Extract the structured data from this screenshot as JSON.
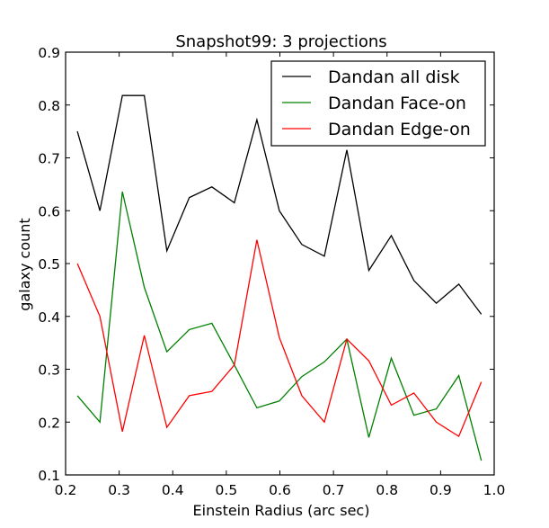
{
  "chart_data": {
    "type": "line",
    "title": "Snapshot99: 3 projections",
    "xlabel": "Einstein Radius (arc sec)",
    "ylabel": "galaxy count",
    "xlim": [
      0.2,
      1.0
    ],
    "ylim": [
      0.1,
      0.9
    ],
    "xticks": [
      "0.2",
      "0.3",
      "0.4",
      "0.5",
      "0.6",
      "0.7",
      "0.8",
      "0.9",
      "1.0"
    ],
    "yticks": [
      "0.1",
      "0.2",
      "0.3",
      "0.4",
      "0.5",
      "0.6",
      "0.7",
      "0.8",
      "0.9"
    ],
    "grid": false,
    "legend_position": "top-right",
    "x": [
      0.222,
      0.264,
      0.306,
      0.347,
      0.389,
      0.431,
      0.473,
      0.515,
      0.557,
      0.599,
      0.641,
      0.683,
      0.725,
      0.766,
      0.808,
      0.85,
      0.892,
      0.934,
      0.976
    ],
    "series": [
      {
        "name": "Dandan all disk",
        "color": "#000000",
        "values": [
          0.75,
          0.6,
          0.818,
          0.818,
          0.524,
          0.625,
          0.645,
          0.615,
          0.772,
          0.6,
          0.536,
          0.514,
          0.715,
          0.487,
          0.553,
          0.468,
          0.425,
          0.461,
          0.404
        ]
      },
      {
        "name": "Dandan Face-on",
        "color": "#008000",
        "values": [
          0.25,
          0.2,
          0.636,
          0.455,
          0.333,
          0.375,
          0.387,
          0.308,
          0.227,
          0.24,
          0.286,
          0.314,
          0.357,
          0.171,
          0.321,
          0.213,
          0.225,
          0.288,
          0.127
        ]
      },
      {
        "name": "Dandan Edge-on",
        "color": "#ff0000",
        "values": [
          0.5,
          0.4,
          0.182,
          0.364,
          0.19,
          0.25,
          0.258,
          0.308,
          0.545,
          0.36,
          0.25,
          0.2,
          0.357,
          0.316,
          0.232,
          0.255,
          0.2,
          0.173,
          0.276
        ]
      }
    ]
  }
}
